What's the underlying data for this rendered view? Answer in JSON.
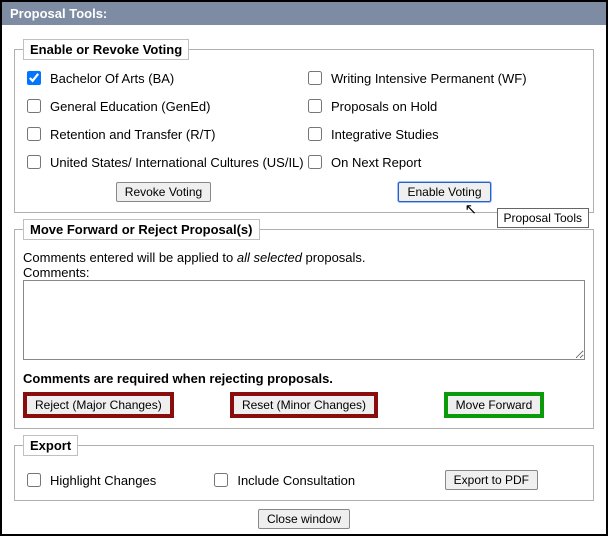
{
  "title": "Proposal Tools:",
  "voting": {
    "legend": "Enable or Revoke Voting",
    "items": [
      {
        "label": "Bachelor Of Arts (BA)",
        "checked": true
      },
      {
        "label": "Writing Intensive Permanent (WF)",
        "checked": false
      },
      {
        "label": "General Education (GenEd)",
        "checked": false
      },
      {
        "label": "Proposals on Hold",
        "checked": false
      },
      {
        "label": "Retention and Transfer (R/T)",
        "checked": false
      },
      {
        "label": "Integrative Studies",
        "checked": false
      },
      {
        "label": "United States/ International Cultures (US/IL)",
        "checked": false
      },
      {
        "label": "On Next Report",
        "checked": false
      }
    ],
    "revoke_label": "Revoke Voting",
    "enable_label": "Enable Voting",
    "tooltip": "Proposal Tools"
  },
  "move": {
    "legend": "Move Forward or Reject Proposal(s)",
    "note_prefix": "Comments entered will be applied to ",
    "note_ital": "all selected",
    "note_suffix": " proposals.",
    "comments_label": "Comments:",
    "comments_value": "",
    "required_note": "Comments are required when rejecting proposals.",
    "reject_label": "Reject (Major Changes)",
    "reset_label": "Reset (Minor Changes)",
    "forward_label": "Move Forward",
    "colors": {
      "reject": "#8a0d0d",
      "reset": "#8a0d0d",
      "forward": "#0a9a0a"
    }
  },
  "export": {
    "legend": "Export",
    "highlight_label": "Highlight Changes",
    "consult_label": "Include Consultation",
    "pdf_label": "Export to PDF"
  },
  "close_label": "Close window"
}
